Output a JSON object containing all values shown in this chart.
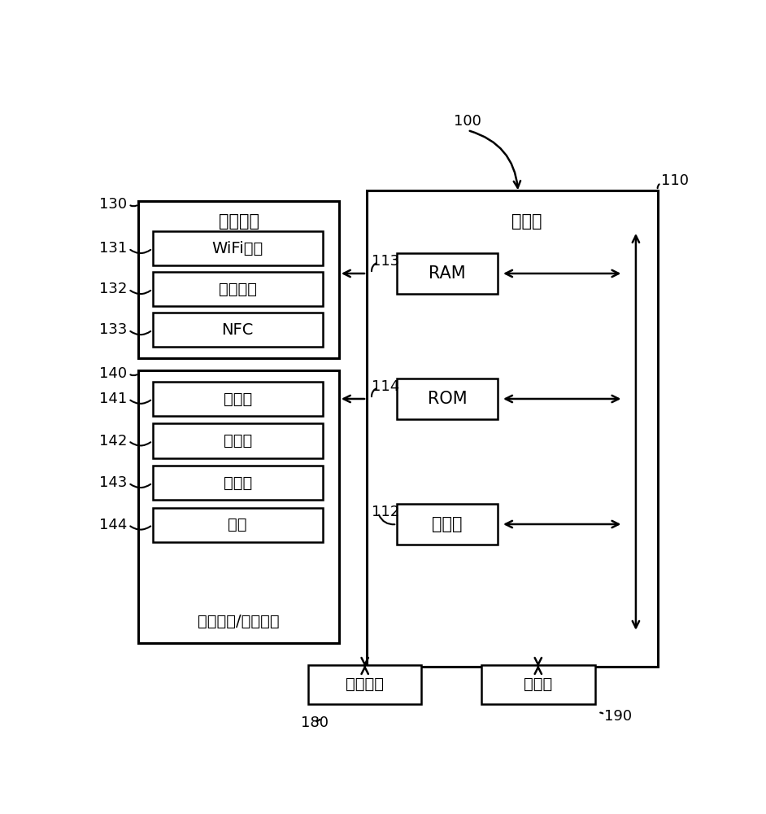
{
  "bg_color": "#ffffff",
  "line_color": "#000000",
  "box_fill": "#ffffff",
  "fig_width": 9.42,
  "fig_height": 10.0,
  "label_100": "100",
  "label_110": "110",
  "label_130": "130",
  "label_131": "131",
  "label_132": "132",
  "label_133": "133",
  "label_140": "140",
  "label_141": "141",
  "label_142": "142",
  "label_143": "143",
  "label_144": "144",
  "label_112": "112",
  "label_113": "113",
  "label_114": "114",
  "label_180": "180",
  "label_190": "190",
  "text_controller": "控制器",
  "text_comm_iface": "通信接口",
  "text_wifi": "WiFi芯片",
  "text_bt": "蓝牙模块",
  "text_nfc": "NFC",
  "text_user_iface": "用户输入/输出接口",
  "text_mic": "麦克风",
  "text_touch": "触摸板",
  "text_sensor": "传感器",
  "text_button": "按键",
  "text_ram": "RAM",
  "text_rom": "ROM",
  "text_processor": "处理器",
  "text_power": "供电电源",
  "text_storage": "存储器"
}
